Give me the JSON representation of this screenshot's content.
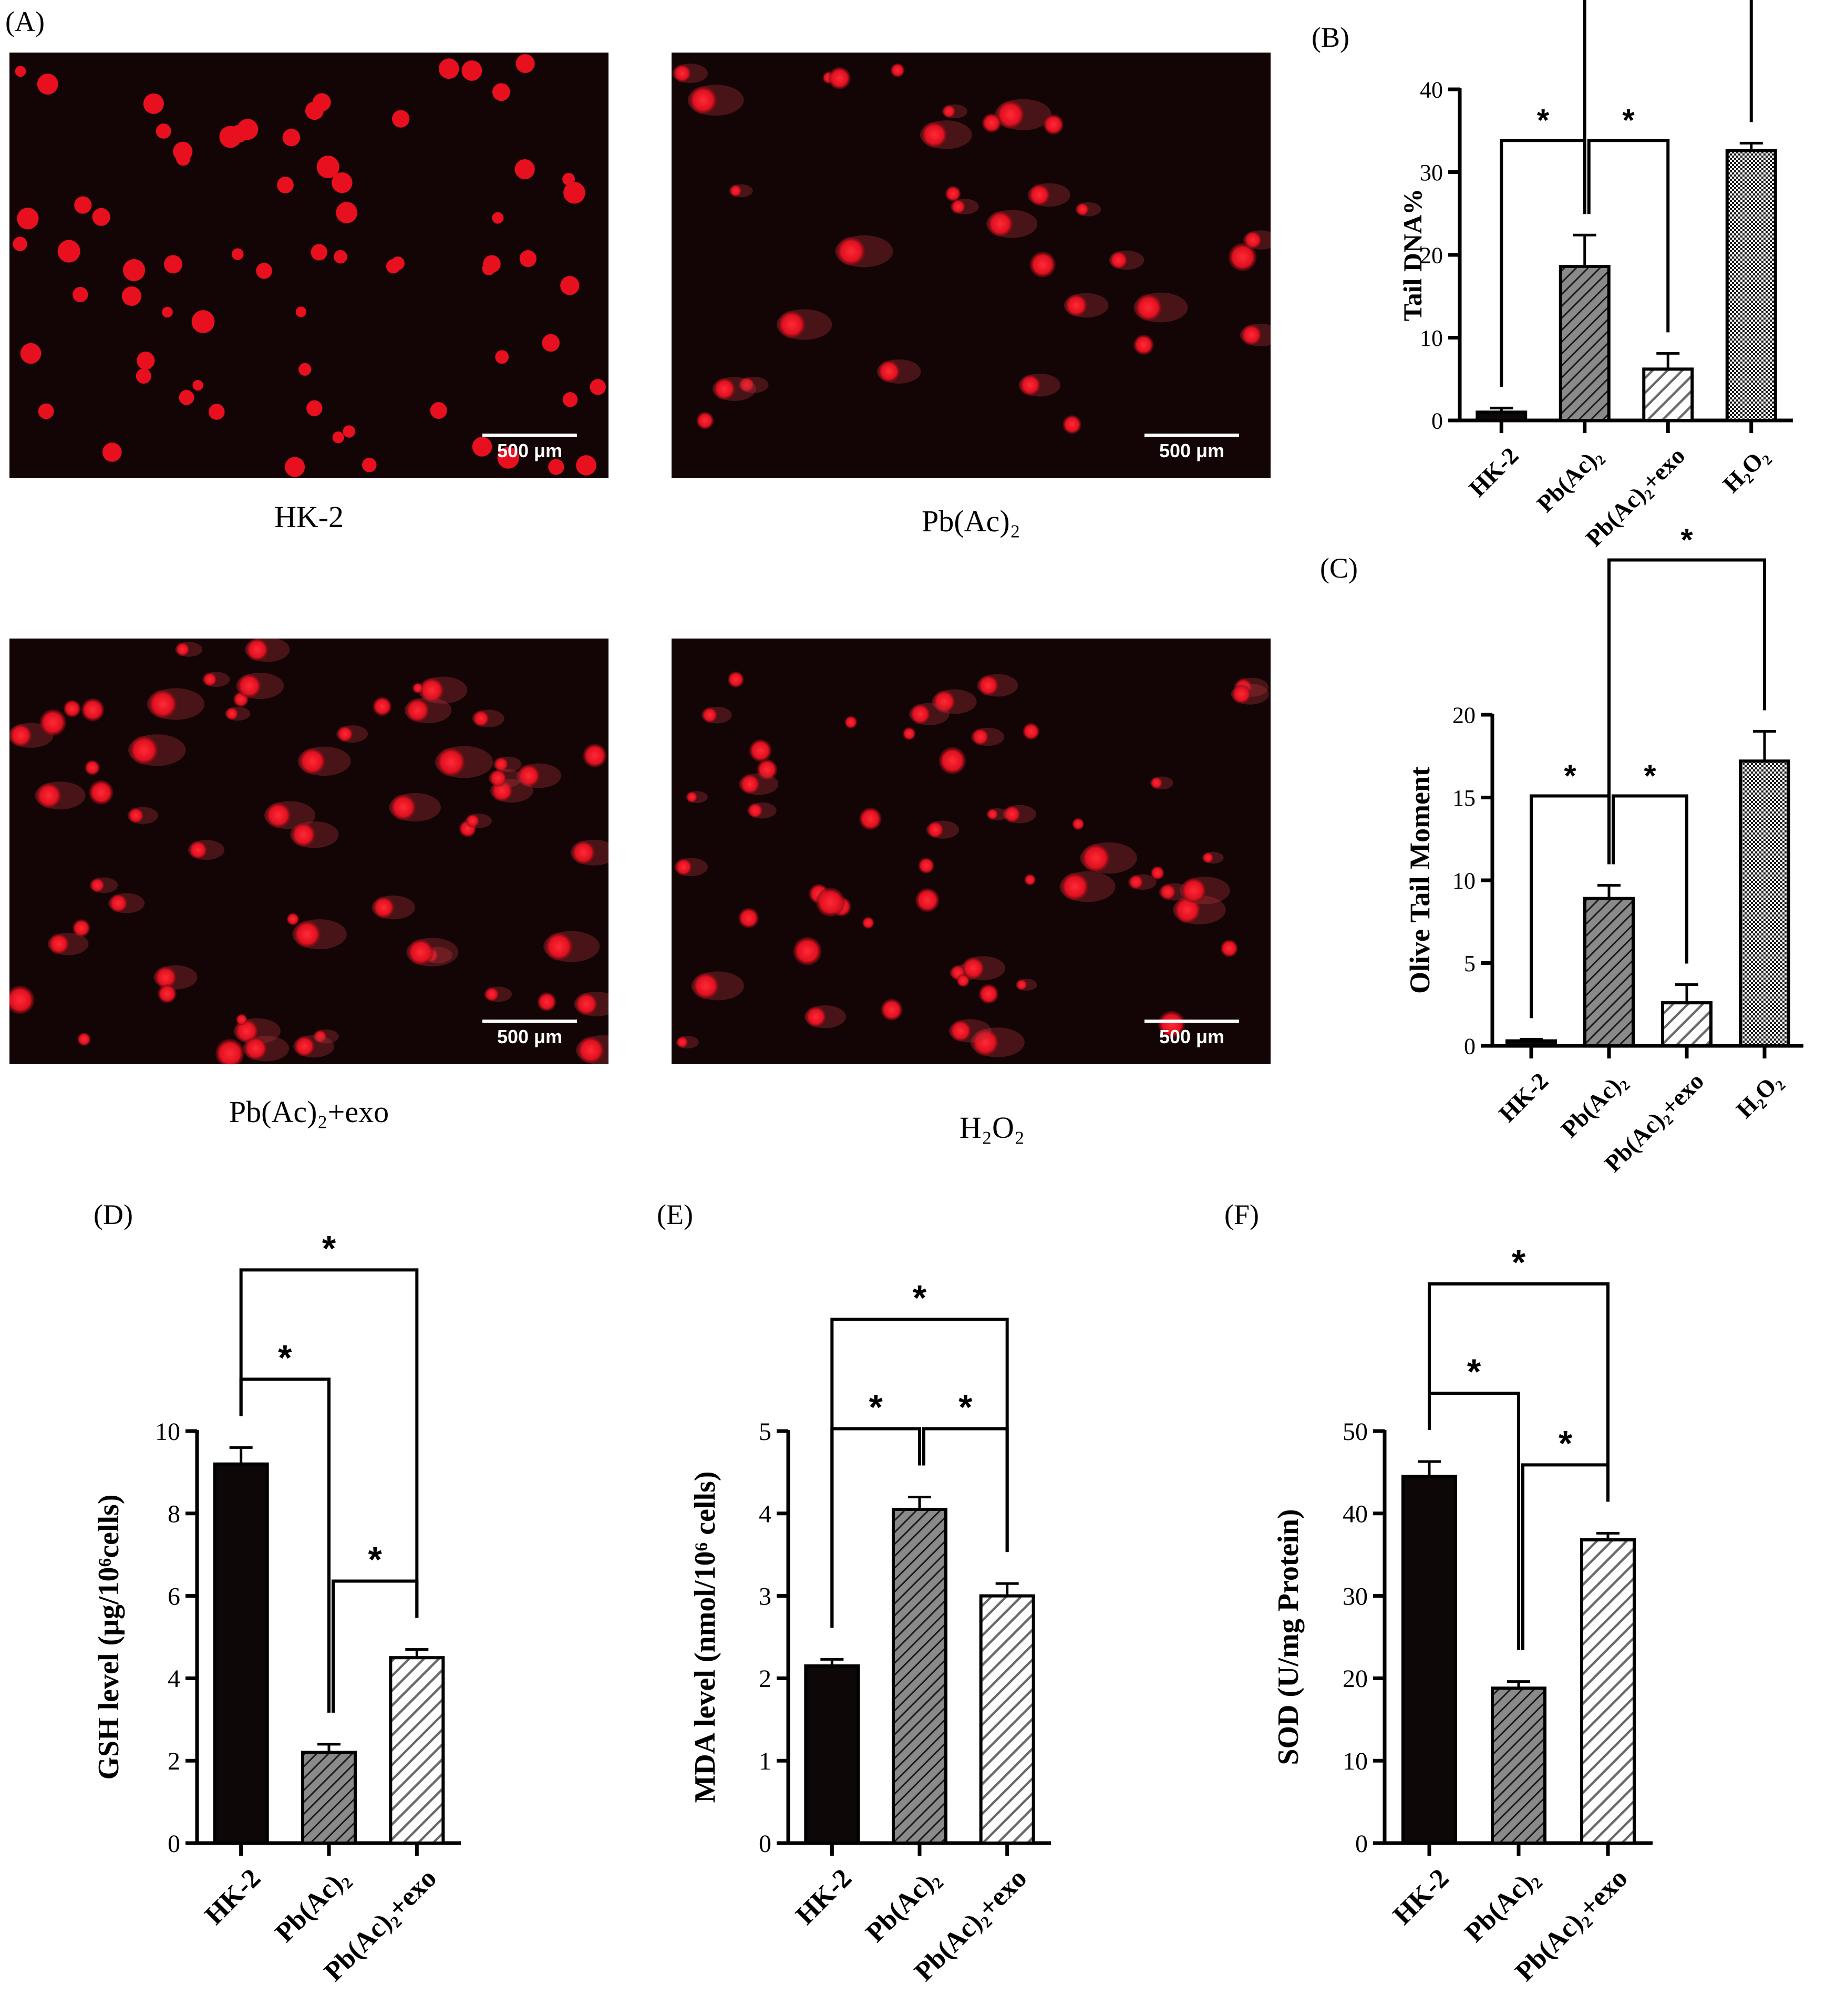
{
  "panel_labels": [
    "(A)",
    "(B)",
    "(C)",
    "(D)",
    "(E)",
    "(F)"
  ],
  "micrographs": [
    {
      "caption": "HK-2",
      "scale_bar": "500 μm"
    },
    {
      "caption": "Pb(Ac)₂",
      "scale_bar": "500 μm"
    },
    {
      "caption": "Pb(Ac)₂+exo",
      "scale_bar": "500 μm"
    },
    {
      "caption": "H₂O₂",
      "scale_bar": "500 μm"
    }
  ],
  "colors": {
    "cell_red": "#e8101e",
    "micro_bg": "#130505",
    "bar_dark": "#0d0807",
    "bar_gray": "#8a8a8a"
  },
  "chart_data": [
    {
      "id": "B",
      "type": "bar",
      "categories": [
        "HK-2",
        "Pb(Ac)₂",
        "Pb(Ac)₂+exo",
        "H₂O₂"
      ],
      "values": [
        1.0,
        18.6,
        6.2,
        32.6
      ],
      "errors": [
        0.5,
        3.8,
        1.9,
        0.9
      ],
      "fills": [
        "solid",
        "gray-hatch",
        "white-hatch",
        "checker"
      ],
      "ylabel": "Tail DNA%",
      "ylim": [
        0,
        40
      ],
      "yticks": [
        0,
        10,
        20,
        30,
        40
      ],
      "significance": [
        {
          "from": 0,
          "to": 1,
          "label": "*"
        },
        {
          "from": 1,
          "to": 2,
          "label": "*"
        },
        {
          "from": 1,
          "to": 3,
          "label": "*"
        }
      ]
    },
    {
      "id": "C",
      "type": "bar",
      "categories": [
        "HK-2",
        "Pb(Ac)₂",
        "Pb(Ac)₂+exo",
        "H₂O₂"
      ],
      "values": [
        0.3,
        8.9,
        2.6,
        17.2
      ],
      "errors": [
        0.1,
        0.8,
        1.1,
        1.8
      ],
      "fills": [
        "solid",
        "gray-hatch",
        "white-hatch",
        "checker"
      ],
      "ylabel": "Olive Tail Moment",
      "ylim": [
        0,
        20
      ],
      "yticks": [
        0,
        5,
        10,
        15,
        20
      ],
      "significance": [
        {
          "from": 0,
          "to": 1,
          "label": "*"
        },
        {
          "from": 1,
          "to": 2,
          "label": "*"
        },
        {
          "from": 1,
          "to": 3,
          "label": "*"
        }
      ]
    },
    {
      "id": "D",
      "type": "bar",
      "categories": [
        "HK-2",
        "Pb(Ac)₂",
        "Pb(Ac)₂+exo"
      ],
      "values": [
        9.2,
        2.2,
        4.5
      ],
      "errors": [
        0.4,
        0.2,
        0.2
      ],
      "fills": [
        "solid",
        "gray-hatch",
        "white-hatch"
      ],
      "ylabel": "GSH level (μg/10⁶cells)",
      "ylim": [
        0,
        10
      ],
      "yticks": [
        0,
        2,
        4,
        6,
        8,
        10
      ],
      "significance": [
        {
          "from": 0,
          "to": 1,
          "label": "*"
        },
        {
          "from": 1,
          "to": 2,
          "label": "*"
        },
        {
          "from": 0,
          "to": 2,
          "label": "*"
        }
      ]
    },
    {
      "id": "E",
      "type": "bar",
      "categories": [
        "HK-2",
        "Pb(Ac)₂",
        "Pb(Ac)₂+exo"
      ],
      "values": [
        2.15,
        4.05,
        3.0
      ],
      "errors": [
        0.08,
        0.15,
        0.15
      ],
      "fills": [
        "solid",
        "gray-hatch",
        "white-hatch"
      ],
      "ylabel": "MDA level (nmol/10⁶ cells)",
      "ylim": [
        0,
        5
      ],
      "yticks": [
        0,
        1,
        2,
        3,
        4,
        5
      ],
      "significance": [
        {
          "from": 0,
          "to": 1,
          "label": "*"
        },
        {
          "from": 1,
          "to": 2,
          "label": "*"
        },
        {
          "from": 0,
          "to": 2,
          "label": "*"
        }
      ]
    },
    {
      "id": "F",
      "type": "bar",
      "categories": [
        "HK-2",
        "Pb(Ac)₂",
        "Pb(Ac)₂+exo"
      ],
      "values": [
        44.5,
        18.8,
        36.8
      ],
      "errors": [
        1.8,
        0.8,
        0.8
      ],
      "fills": [
        "solid",
        "gray-hatch",
        "white-hatch"
      ],
      "ylabel": "SOD (U/mg Protein)",
      "ylim": [
        0,
        50
      ],
      "yticks": [
        0,
        10,
        20,
        30,
        40,
        50
      ],
      "significance": [
        {
          "from": 0,
          "to": 1,
          "label": "*"
        },
        {
          "from": 1,
          "to": 2,
          "label": "*"
        },
        {
          "from": 0,
          "to": 2,
          "label": "*"
        }
      ]
    }
  ]
}
